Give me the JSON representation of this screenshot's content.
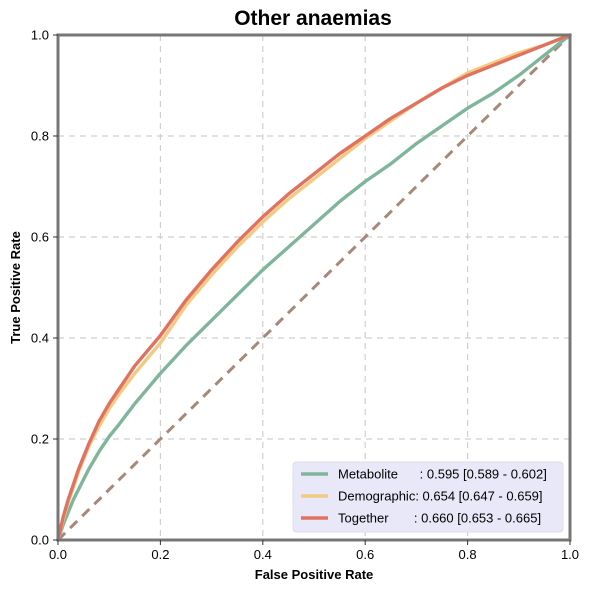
{
  "chart_data": {
    "type": "line",
    "title": "Other anaemias",
    "xlabel": "False Positive Rate",
    "ylabel": "True Positive Rate",
    "xlim": [
      0,
      1
    ],
    "ylim": [
      0,
      1
    ],
    "xticks": [
      "0.0",
      "0.2",
      "0.4",
      "0.6",
      "0.8",
      "1.0"
    ],
    "yticks": [
      "0.0",
      "0.2",
      "0.4",
      "0.6",
      "0.8",
      "1.0"
    ],
    "grid": true,
    "legend_position": "bottom-right",
    "series": [
      {
        "name": "Metabolite",
        "legend_label": "Metabolite      : 0.595 [0.589 - 0.602]",
        "color": "#7fb59a",
        "x": [
          0,
          0.01,
          0.02,
          0.03,
          0.04,
          0.05,
          0.06,
          0.08,
          0.1,
          0.12,
          0.15,
          0.2,
          0.25,
          0.3,
          0.35,
          0.4,
          0.45,
          0.5,
          0.55,
          0.6,
          0.65,
          0.7,
          0.75,
          0.8,
          0.85,
          0.9,
          0.95,
          1.0
        ],
        "y": [
          0,
          0.03,
          0.055,
          0.08,
          0.1,
          0.12,
          0.14,
          0.175,
          0.205,
          0.23,
          0.27,
          0.33,
          0.385,
          0.435,
          0.485,
          0.535,
          0.58,
          0.625,
          0.67,
          0.71,
          0.745,
          0.785,
          0.82,
          0.855,
          0.885,
          0.92,
          0.96,
          1.0
        ]
      },
      {
        "name": "Demographic",
        "legend_label": "Demographic: 0.654 [0.647 - 0.659]",
        "color": "#f6c983",
        "x": [
          0,
          0.01,
          0.02,
          0.03,
          0.04,
          0.05,
          0.06,
          0.08,
          0.1,
          0.12,
          0.15,
          0.2,
          0.25,
          0.3,
          0.35,
          0.4,
          0.45,
          0.5,
          0.55,
          0.6,
          0.65,
          0.7,
          0.75,
          0.8,
          0.85,
          0.9,
          0.95,
          1.0
        ],
        "y": [
          0,
          0.04,
          0.075,
          0.105,
          0.135,
          0.16,
          0.185,
          0.225,
          0.26,
          0.29,
          0.33,
          0.39,
          0.465,
          0.525,
          0.58,
          0.63,
          0.675,
          0.715,
          0.755,
          0.795,
          0.83,
          0.865,
          0.895,
          0.925,
          0.945,
          0.965,
          0.98,
          1.0
        ]
      },
      {
        "name": "Together",
        "legend_label": "Together       : 0.660 [0.653 - 0.665]",
        "color": "#e07360",
        "x": [
          0,
          0.01,
          0.02,
          0.03,
          0.04,
          0.05,
          0.06,
          0.08,
          0.1,
          0.12,
          0.15,
          0.2,
          0.25,
          0.3,
          0.35,
          0.4,
          0.45,
          0.5,
          0.55,
          0.6,
          0.65,
          0.7,
          0.75,
          0.8,
          0.85,
          0.9,
          0.95,
          1.0
        ],
        "y": [
          0,
          0.045,
          0.08,
          0.11,
          0.14,
          0.165,
          0.19,
          0.235,
          0.27,
          0.3,
          0.345,
          0.405,
          0.475,
          0.535,
          0.59,
          0.64,
          0.685,
          0.725,
          0.765,
          0.8,
          0.835,
          0.865,
          0.895,
          0.92,
          0.94,
          0.96,
          0.98,
          1.0
        ]
      },
      {
        "name": "",
        "color": "#a88878",
        "dashed": true,
        "x": [
          0,
          1
        ],
        "y": [
          0,
          1
        ]
      }
    ]
  }
}
